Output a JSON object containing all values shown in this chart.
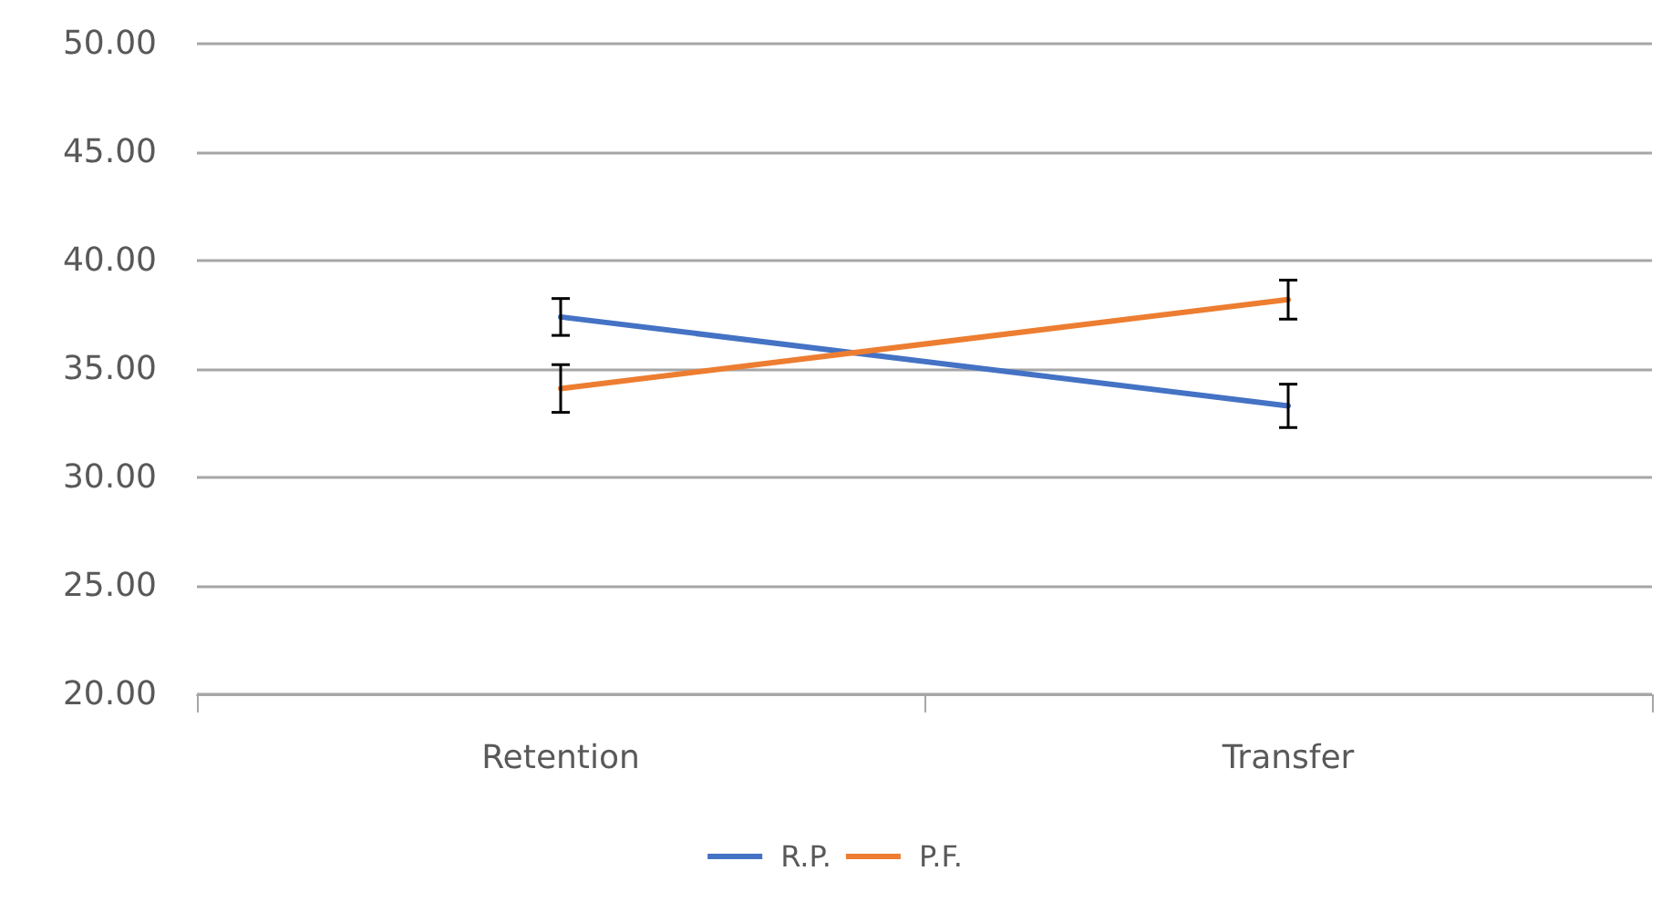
{
  "chart_data": {
    "type": "line",
    "categories": [
      "Retention",
      "Transfer"
    ],
    "series": [
      {
        "name": "R.P.",
        "color": "#4472c4",
        "values": [
          37.4,
          33.3
        ],
        "errors": [
          0.85,
          1.0
        ]
      },
      {
        "name": "P.F.",
        "color": "#ed7d31",
        "values": [
          34.1,
          38.2
        ],
        "errors": [
          1.1,
          0.9
        ]
      }
    ],
    "ylim": [
      20,
      50
    ],
    "yticks": [
      {
        "value": 20,
        "label": "20.00"
      },
      {
        "value": 25,
        "label": "25.00"
      },
      {
        "value": 30,
        "label": "30.00"
      },
      {
        "value": 35,
        "label": "35.00"
      },
      {
        "value": 40,
        "label": "40.00"
      },
      {
        "value": 45,
        "label": "45.00"
      },
      {
        "value": 50,
        "label": "50.00"
      }
    ],
    "grid": "y",
    "legend": "bottom",
    "marker": "none",
    "line_style": "solid"
  }
}
